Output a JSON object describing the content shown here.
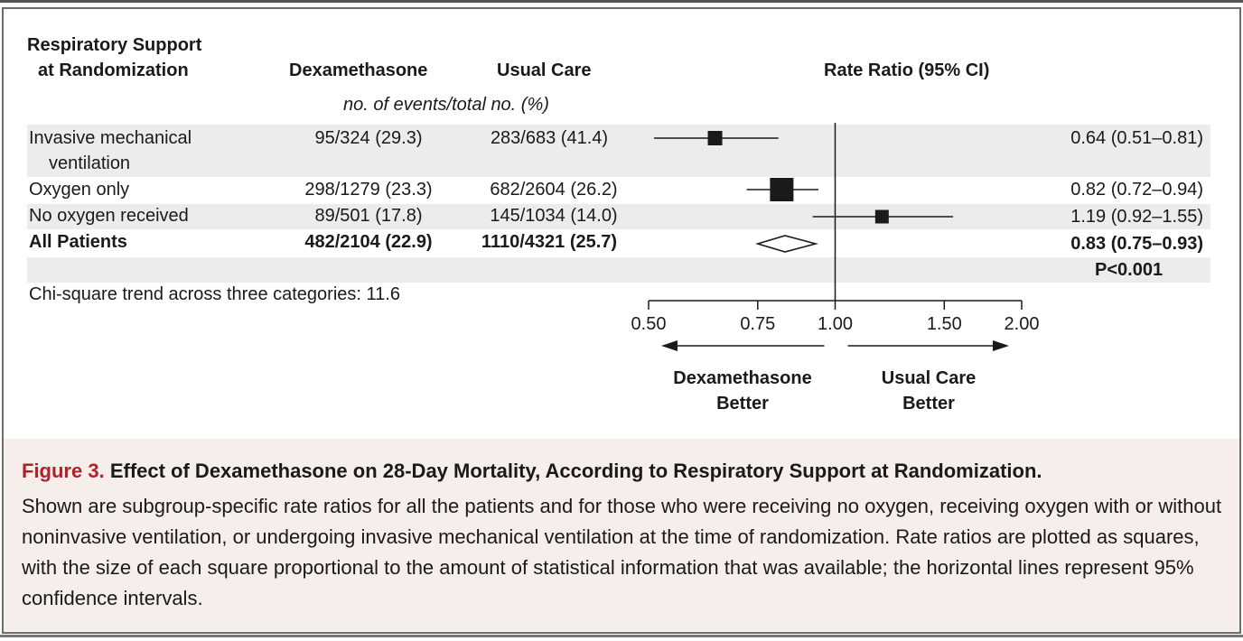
{
  "header": {
    "col_subgroup_line1": "Respiratory Support",
    "col_subgroup_line2": "at Randomization",
    "col_dexa": "Dexamethasone",
    "col_usual": "Usual Care",
    "col_ratio": "Rate Ratio (95% CI)",
    "units": "no. of events/total no. (%)"
  },
  "rows": [
    {
      "label_line1": "Invasive mechanical",
      "label_line2": "ventilation",
      "dexa": "95/324 (29.3)",
      "usual": "283/683 (41.4)",
      "ratio_text": "0.64 (0.51–0.81)"
    },
    {
      "label_line1": "Oxygen only",
      "dexa": "298/1279 (23.3)",
      "usual": "682/2604 (26.2)",
      "ratio_text": "0.82 (0.72–0.94)"
    },
    {
      "label_line1": "No oxygen received",
      "dexa": "89/501 (17.8)",
      "usual": "145/1034 (14.0)",
      "ratio_text": "1.19 (0.92–1.55)"
    },
    {
      "label_line1": "All Patients",
      "dexa": "482/2104 (22.9)",
      "usual": "1110/4321 (25.7)",
      "ratio_text": "0.83 (0.75–0.93)",
      "p_value": "P<0.001"
    }
  ],
  "footnote": "Chi-square trend across three categories: 11.6",
  "axis": {
    "direction_left_line1": "Dexamethasone",
    "direction_left_line2": "Better",
    "direction_right_line1": "Usual Care",
    "direction_right_line2": "Better"
  },
  "chart_data": {
    "type": "forest",
    "title": "Rate Ratio (95% CI)",
    "x_scale": "log",
    "xlim": [
      0.5,
      2.0
    ],
    "x_ticks": [
      0.5,
      0.75,
      1.0,
      1.5,
      2.0
    ],
    "x_tick_labels": [
      "0.50",
      "0.75",
      "1.00",
      "1.50",
      "2.00"
    ],
    "reference_line": 1.0,
    "categories": [
      "Invasive mechanical ventilation",
      "Oxygen only",
      "No oxygen received",
      "All Patients"
    ],
    "estimates": [
      0.64,
      0.82,
      1.19,
      0.83
    ],
    "ci_lower": [
      0.51,
      0.72,
      0.92,
      0.75
    ],
    "ci_upper": [
      0.81,
      0.94,
      1.55,
      0.93
    ],
    "marker": [
      "square",
      "square",
      "square",
      "diamond"
    ],
    "relative_weight": [
      0.5,
      1.0,
      0.45,
      null
    ]
  },
  "caption": {
    "label": "Figure 3.",
    "title": "Effect of Dexamethasone on 28-Day Mortality, According to Respiratory Support at Randomization.",
    "body": "Shown are subgroup-specific rate ratios for all the patients and for those who were receiving no oxygen, receiving oxygen with or without noninvasive ventilation, or undergoing invasive mechanical ventilation at the time of random­ization. Rate ratios are plotted as squares, with the size of each square proportional to the amount of statistical in­formation that was available; the horizontal lines represent 95% confidence intervals."
  },
  "colors": {
    "caption_label": "#b3202a",
    "band": "#ececec",
    "caption_bg": "#f6eeea"
  }
}
